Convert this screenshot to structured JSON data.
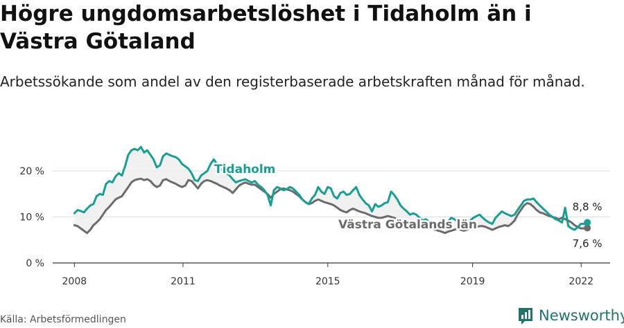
{
  "header": {
    "title": "Högre ungdomsarbetslöshet i Tidaholm än i Västra Götaland",
    "subtitle": "Arbetssökande som andel av den registerbaserade arbetskraften månad för månad."
  },
  "footer": {
    "source": "Källa: Arbetsförmedlingen",
    "brand": "Newsworthy"
  },
  "colors": {
    "tidaholm": "#16a095",
    "vastra": "#6b6b6b",
    "grid": "#dddddd",
    "fill": "#eeeeee",
    "brand": "#1e7468"
  },
  "chart_data": {
    "type": "line",
    "title": "Högre ungdomsarbetslöshet i Tidaholm än i Västra Götaland",
    "xlabel": "",
    "ylabel": "",
    "x_ticks": [
      2008,
      2011,
      2015,
      2019,
      2022
    ],
    "y_ticks": [
      0,
      10,
      20
    ],
    "y_tick_labels": [
      "0 %",
      "10 %",
      "20 %"
    ],
    "xlim": [
      2007.4,
      2022.8
    ],
    "ylim": [
      0,
      20
    ],
    "x_start": 2008.0,
    "x_end": 2022.17,
    "series": [
      {
        "name": "Tidaholm",
        "label": "Tidaholm",
        "end_label": "8,8 %",
        "values": [
          10.8,
          11.5,
          11.3,
          11.0,
          11.8,
          12.5,
          12.8,
          14.5,
          15.0,
          14.8,
          17.2,
          17.8,
          17.5,
          18.8,
          19.5,
          19.0,
          21.0,
          23.5,
          24.5,
          24.8,
          24.5,
          25.2,
          24.0,
          24.5,
          23.5,
          22.5,
          20.8,
          21.2,
          23.2,
          23.8,
          23.5,
          23.2,
          23.0,
          22.5,
          21.5,
          21.0,
          20.5,
          19.5,
          18.0,
          17.8,
          19.0,
          19.5,
          20.0,
          21.5,
          22.5,
          21.5,
          20.5,
          20.0,
          19.5,
          19.0,
          18.2,
          17.5,
          17.8,
          18.0,
          18.2,
          17.8,
          17.5,
          17.8,
          17.0,
          16.5,
          15.8,
          14.8,
          12.5,
          15.8,
          16.5,
          16.2,
          15.8,
          16.0,
          16.5,
          16.2,
          15.5,
          14.8,
          13.8,
          13.2,
          12.8,
          14.0,
          14.8,
          16.5,
          15.5,
          15.0,
          16.5,
          16.2,
          14.5,
          14.0,
          15.2,
          15.5,
          14.8,
          15.0,
          15.8,
          16.5,
          14.8,
          13.8,
          13.0,
          12.5,
          11.2,
          12.8,
          12.2,
          12.5,
          13.0,
          13.2,
          15.5,
          14.8,
          13.8,
          12.5,
          11.8,
          11.2,
          10.5,
          10.8,
          10.5,
          9.8,
          9.2,
          9.5,
          9.0,
          8.8,
          8.5,
          8.2,
          7.8,
          8.0,
          9.0,
          9.8,
          9.5,
          9.0,
          8.5,
          8.5,
          8.8,
          9.2,
          9.8,
          10.2,
          10.5,
          9.8,
          9.2,
          8.8,
          8.5,
          9.8,
          10.5,
          11.2,
          10.8,
          10.5,
          10.2,
          10.5,
          11.5,
          12.5,
          13.5,
          13.8,
          13.8,
          14.0,
          13.2,
          12.5,
          11.8,
          11.2,
          10.5,
          10.0,
          9.5,
          9.2,
          8.8,
          12.0,
          8.0,
          7.5,
          7.2,
          7.8,
          8.5,
          8.5,
          8.8
        ]
      },
      {
        "name": "Västra Götalands län",
        "label": "Västra Götalands län",
        "end_label": "7,6 %",
        "values": [
          8.2,
          8.0,
          7.5,
          7.0,
          6.5,
          7.2,
          8.2,
          8.8,
          9.5,
          10.5,
          11.5,
          12.2,
          13.0,
          13.8,
          14.2,
          14.5,
          15.5,
          16.5,
          17.5,
          18.0,
          18.2,
          18.3,
          18.0,
          18.2,
          17.8,
          17.0,
          16.5,
          16.8,
          18.0,
          18.2,
          17.8,
          17.5,
          17.2,
          16.8,
          16.5,
          16.8,
          18.0,
          17.8,
          17.0,
          16.2,
          17.2,
          17.8,
          18.0,
          17.8,
          17.5,
          17.2,
          16.8,
          16.5,
          16.2,
          15.8,
          15.2,
          16.0,
          16.8,
          17.2,
          17.5,
          17.2,
          17.0,
          17.0,
          16.5,
          16.0,
          15.5,
          15.0,
          14.2,
          15.0,
          15.5,
          16.0,
          16.2,
          16.0,
          15.8,
          15.5,
          15.0,
          14.5,
          13.8,
          13.2,
          12.8,
          13.0,
          13.5,
          13.8,
          13.5,
          13.2,
          13.0,
          12.8,
          12.5,
          12.0,
          11.5,
          11.2,
          11.0,
          11.5,
          11.8,
          11.5,
          11.2,
          11.0,
          10.8,
          10.5,
          10.2,
          10.0,
          9.8,
          9.8,
          10.0,
          10.2,
          10.0,
          9.8,
          9.5,
          9.2,
          9.0,
          8.8,
          8.5,
          8.5,
          8.2,
          8.0,
          7.8,
          7.8,
          7.5,
          7.5,
          7.2,
          7.0,
          6.8,
          6.5,
          6.8,
          7.0,
          7.2,
          7.5,
          7.2,
          7.0,
          7.2,
          7.5,
          7.5,
          7.8,
          8.0,
          8.0,
          7.8,
          7.5,
          7.2,
          7.5,
          7.8,
          8.0,
          8.2,
          8.0,
          8.5,
          9.2,
          10.5,
          11.5,
          12.5,
          13.0,
          12.8,
          12.2,
          11.5,
          11.0,
          10.8,
          10.5,
          10.2,
          10.0,
          9.8,
          9.5,
          9.8,
          9.5,
          9.2,
          8.8,
          8.2,
          7.8,
          7.5,
          7.5,
          7.6
        ]
      }
    ]
  }
}
